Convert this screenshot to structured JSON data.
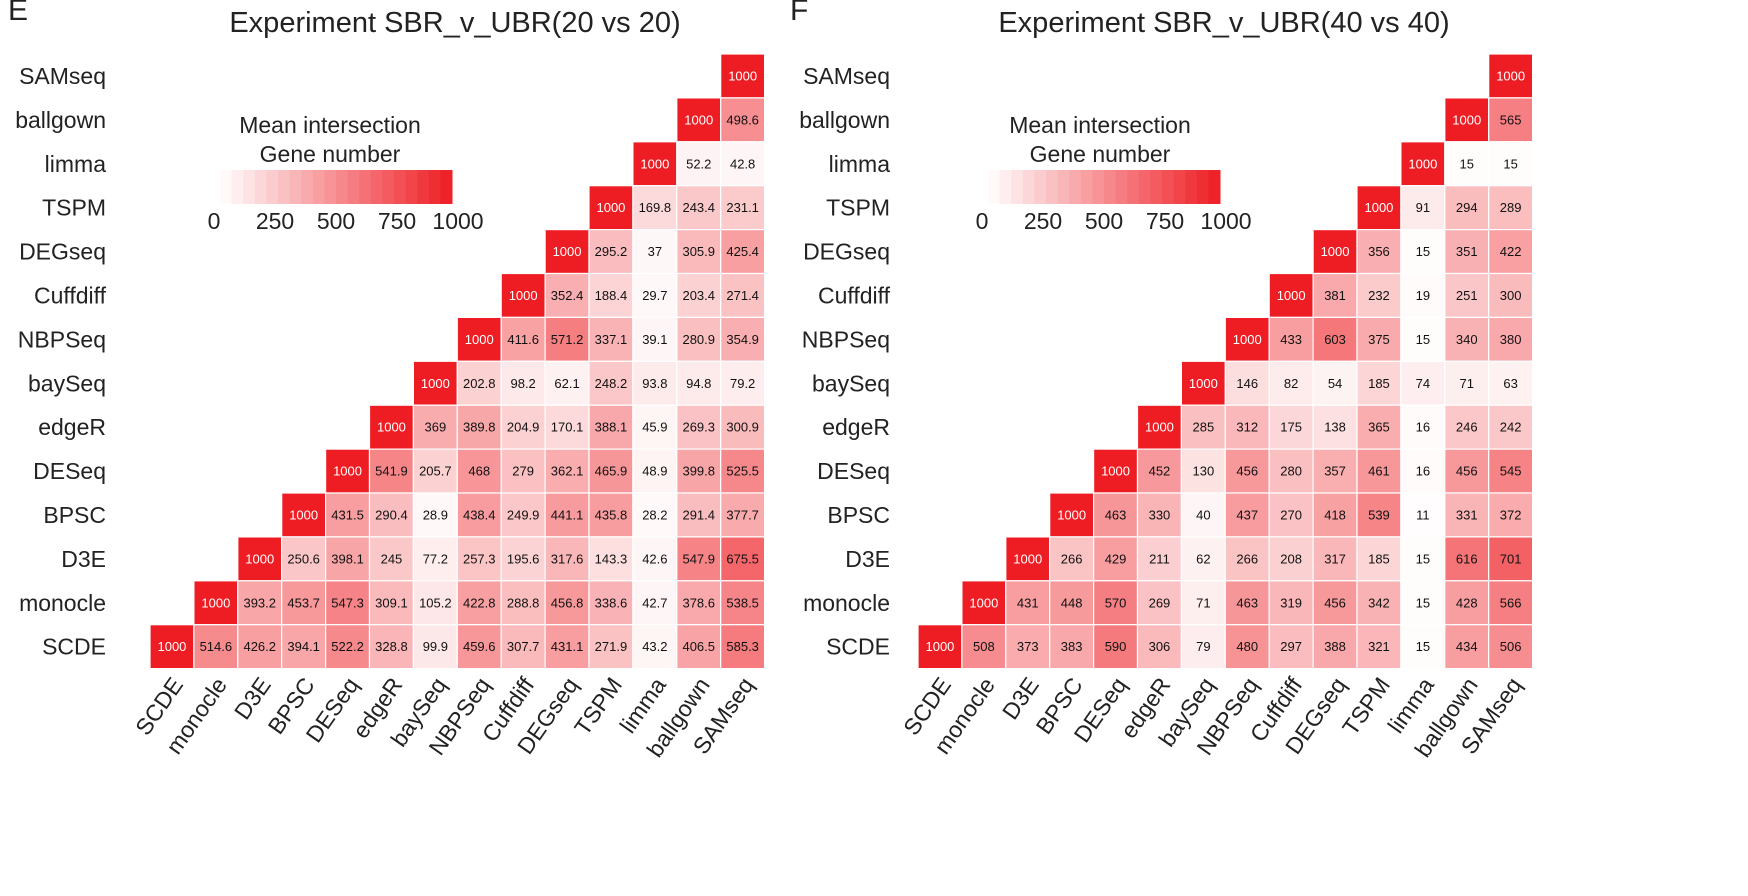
{
  "chart_data": [
    {
      "type": "heatmap",
      "panel_letter": "E",
      "title": "Experiment SBR_v_UBR(20 vs 20)",
      "legend": {
        "title_line1": "Mean intersection",
        "title_line2": "Gene number",
        "ticks": [
          "0",
          "250",
          "500",
          "750",
          "1000"
        ],
        "range": [
          0,
          1000
        ],
        "placement": "top-left"
      },
      "color_low": "#ffffff",
      "color_high": "#ee1d23",
      "x_categories": [
        "SCDE",
        "monocle",
        "D3E",
        "BPSC",
        "DESeq",
        "edgeR",
        "baySeq",
        "NBPSeq",
        "Cuffdiff",
        "DEGseq",
        "TSPM",
        "limma",
        "ballgown",
        "SAMseq"
      ],
      "y_categories": [
        "SAMseq",
        "ballgown",
        "limma",
        "TSPM",
        "DEGseq",
        "Cuffdiff",
        "NBPSeq",
        "baySeq",
        "edgeR",
        "DESeq",
        "BPSC",
        "D3E",
        "monocle",
        "SCDE"
      ],
      "rows": [
        [
          null,
          null,
          null,
          null,
          null,
          null,
          null,
          null,
          null,
          null,
          null,
          null,
          null,
          1000
        ],
        [
          null,
          null,
          null,
          null,
          null,
          null,
          null,
          null,
          null,
          null,
          null,
          null,
          1000,
          498.6
        ],
        [
          null,
          null,
          null,
          null,
          null,
          null,
          null,
          null,
          null,
          null,
          null,
          1000,
          52.2,
          42.8
        ],
        [
          null,
          null,
          null,
          null,
          null,
          null,
          null,
          null,
          null,
          null,
          1000,
          169.8,
          243.4,
          231.1
        ],
        [
          null,
          null,
          null,
          null,
          null,
          null,
          null,
          null,
          null,
          1000,
          295.2,
          37,
          305.9,
          425.4
        ],
        [
          null,
          null,
          null,
          null,
          null,
          null,
          null,
          null,
          1000,
          352.4,
          188.4,
          29.7,
          203.4,
          271.4
        ],
        [
          null,
          null,
          null,
          null,
          null,
          null,
          null,
          1000,
          411.6,
          571.2,
          337.1,
          39.1,
          280.9,
          354.9
        ],
        [
          null,
          null,
          null,
          null,
          null,
          null,
          1000,
          202.8,
          98.2,
          62.1,
          248.2,
          93.8,
          94.8,
          79.2
        ],
        [
          null,
          null,
          null,
          null,
          null,
          1000,
          369,
          389.8,
          204.9,
          170.1,
          388.1,
          45.9,
          269.3,
          300.9
        ],
        [
          null,
          null,
          null,
          null,
          1000,
          541.9,
          205.7,
          468,
          279,
          362.1,
          465.9,
          48.9,
          399.8,
          525.5
        ],
        [
          null,
          null,
          null,
          1000,
          431.5,
          290.4,
          28.9,
          438.4,
          249.9,
          441.1,
          435.8,
          28.2,
          291.4,
          377.7
        ],
        [
          null,
          null,
          1000,
          250.6,
          398.1,
          245,
          77.2,
          257.3,
          195.6,
          317.6,
          143.3,
          42.6,
          547.9,
          675.5
        ],
        [
          null,
          1000,
          393.2,
          453.7,
          547.3,
          309.1,
          105.2,
          422.8,
          288.8,
          456.8,
          338.6,
          42.7,
          378.6,
          538.5
        ],
        [
          1000,
          514.6,
          426.2,
          394.1,
          522.2,
          328.8,
          99.9,
          459.6,
          307.7,
          431.1,
          271.9,
          43.2,
          406.5,
          585.3
        ]
      ]
    },
    {
      "type": "heatmap",
      "panel_letter": "F",
      "title": "Experiment SBR_v_UBR(40 vs 40)",
      "legend": {
        "title_line1": "Mean intersection",
        "title_line2": "Gene number",
        "ticks": [
          "0",
          "250",
          "500",
          "750",
          "1000"
        ],
        "range": [
          0,
          1000
        ],
        "placement": "top-left"
      },
      "color_low": "#ffffff",
      "color_high": "#ee1d23",
      "x_categories": [
        "SCDE",
        "monocle",
        "D3E",
        "BPSC",
        "DESeq",
        "edgeR",
        "baySeq",
        "NBPSeq",
        "Cuffdiff",
        "DEGseq",
        "TSPM",
        "limma",
        "ballgown",
        "SAMseq"
      ],
      "y_categories": [
        "SAMseq",
        "ballgown",
        "limma",
        "TSPM",
        "DEGseq",
        "Cuffdiff",
        "NBPSeq",
        "baySeq",
        "edgeR",
        "DESeq",
        "BPSC",
        "D3E",
        "monocle",
        "SCDE"
      ],
      "rows": [
        [
          null,
          null,
          null,
          null,
          null,
          null,
          null,
          null,
          null,
          null,
          null,
          null,
          null,
          1000
        ],
        [
          null,
          null,
          null,
          null,
          null,
          null,
          null,
          null,
          null,
          null,
          null,
          null,
          1000,
          565
        ],
        [
          null,
          null,
          null,
          null,
          null,
          null,
          null,
          null,
          null,
          null,
          null,
          1000,
          15,
          15
        ],
        [
          null,
          null,
          null,
          null,
          null,
          null,
          null,
          null,
          null,
          null,
          1000,
          91,
          294,
          289
        ],
        [
          null,
          null,
          null,
          null,
          null,
          null,
          null,
          null,
          null,
          1000,
          356,
          15,
          351,
          422
        ],
        [
          null,
          null,
          null,
          null,
          null,
          null,
          null,
          null,
          1000,
          381,
          232,
          19,
          251,
          300
        ],
        [
          null,
          null,
          null,
          null,
          null,
          null,
          null,
          1000,
          433,
          603,
          375,
          15,
          340,
          380
        ],
        [
          null,
          null,
          null,
          null,
          null,
          null,
          1000,
          146,
          82,
          54,
          185,
          74,
          71,
          63
        ],
        [
          null,
          null,
          null,
          null,
          null,
          1000,
          285,
          312,
          175,
          138,
          365,
          16,
          246,
          242
        ],
        [
          null,
          null,
          null,
          null,
          1000,
          452,
          130,
          456,
          280,
          357,
          461,
          16,
          456,
          545
        ],
        [
          null,
          null,
          null,
          1000,
          463,
          330,
          40,
          437,
          270,
          418,
          539,
          11,
          331,
          372
        ],
        [
          null,
          null,
          1000,
          266,
          429,
          211,
          62,
          266,
          208,
          317,
          185,
          15,
          616,
          701
        ],
        [
          null,
          1000,
          431,
          448,
          570,
          269,
          71,
          463,
          319,
          456,
          342,
          15,
          428,
          566
        ],
        [
          1000,
          508,
          373,
          383,
          590,
          306,
          79,
          480,
          297,
          388,
          321,
          15,
          434,
          506
        ]
      ]
    }
  ]
}
